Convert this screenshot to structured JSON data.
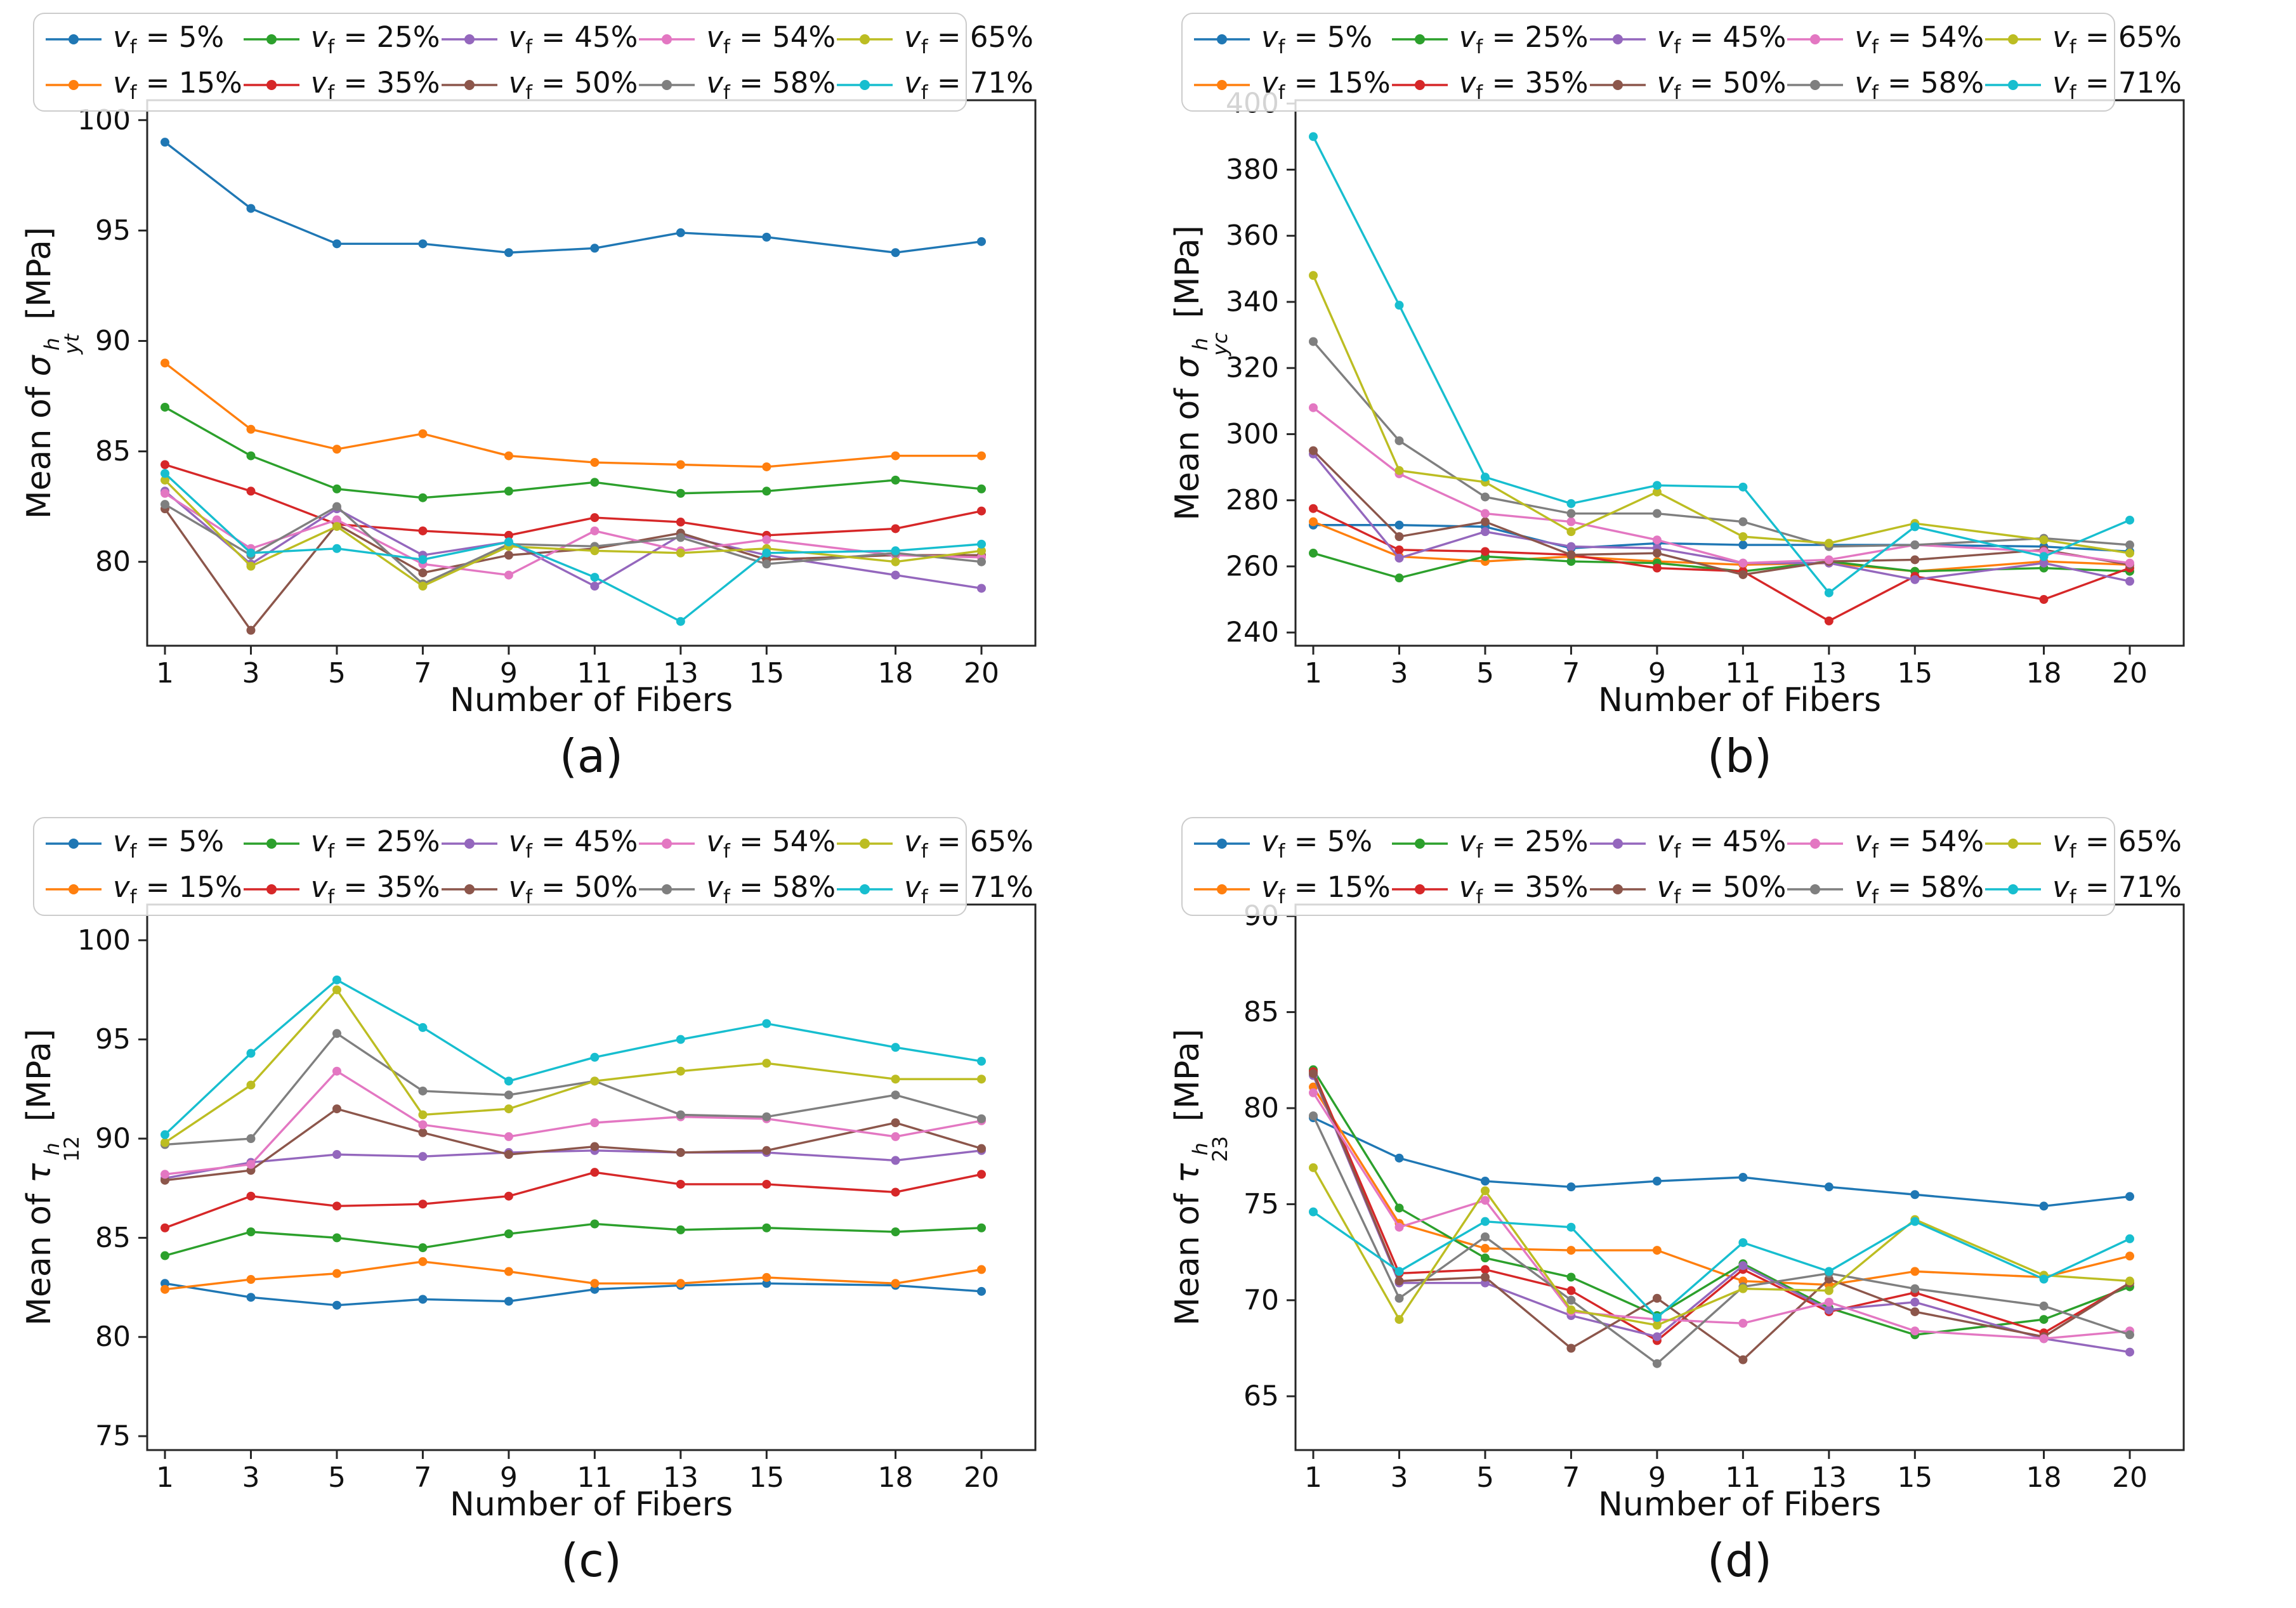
{
  "figure": {
    "xlabel": "Number of Fibers",
    "unit": "[MPa]",
    "legend": {
      "var": "v",
      "var_sub": "f",
      "eq": " = "
    },
    "spine_color": "#262626",
    "background": "#ffffff"
  },
  "chart_data": [
    {
      "type": "line",
      "panel": "a",
      "caption": "(a)",
      "title": "",
      "xlabel": "Number of Fibers",
      "ylabel": {
        "prefix": "Mean of ",
        "symbol": "σ",
        "sup": "h",
        "sub": "yt",
        "unit": "[MPa]"
      },
      "x": [
        1,
        3,
        5,
        7,
        9,
        11,
        13,
        15,
        18,
        20
      ],
      "xticks": [
        1,
        3,
        5,
        7,
        9,
        11,
        13,
        15,
        18,
        20
      ],
      "yticks": [
        80,
        85,
        90,
        95,
        100
      ],
      "ylim": [
        76.2,
        100.9
      ],
      "grid": false,
      "legend_position": "top",
      "series": [
        {
          "vf": "5%",
          "name": "vf = 5%",
          "color": "#1f77b4",
          "values": [
            99.0,
            96.0,
            94.4,
            94.4,
            94.0,
            94.2,
            94.9,
            94.7,
            94.0,
            94.5
          ]
        },
        {
          "vf": "15%",
          "name": "vf = 15%",
          "color": "#ff7f0e",
          "values": [
            89.0,
            86.0,
            85.1,
            85.8,
            84.8,
            84.5,
            84.4,
            84.3,
            84.8,
            84.8
          ]
        },
        {
          "vf": "25%",
          "name": "vf = 25%",
          "color": "#2ca02c",
          "values": [
            87.0,
            84.8,
            83.3,
            82.9,
            83.2,
            83.6,
            83.1,
            83.2,
            83.7,
            83.3
          ]
        },
        {
          "vf": "35%",
          "name": "vf = 35%",
          "color": "#d62728",
          "values": [
            84.4,
            83.2,
            81.7,
            81.4,
            81.2,
            82.0,
            81.8,
            81.2,
            81.5,
            82.3
          ]
        },
        {
          "vf": "45%",
          "name": "vf = 45%",
          "color": "#9467bd",
          "values": [
            83.2,
            79.9,
            82.4,
            80.3,
            80.9,
            78.9,
            81.2,
            80.3,
            79.4,
            78.8
          ]
        },
        {
          "vf": "50%",
          "name": "vf = 50%",
          "color": "#8c564b",
          "values": [
            82.4,
            76.9,
            81.7,
            79.5,
            80.3,
            80.6,
            81.3,
            80.1,
            80.3,
            80.3
          ]
        },
        {
          "vf": "54%",
          "name": "vf = 54%",
          "color": "#e377c2",
          "values": [
            83.1,
            80.6,
            81.9,
            79.9,
            79.4,
            81.4,
            80.5,
            81.0,
            80.3,
            80.2
          ]
        },
        {
          "vf": "58%",
          "name": "vf = 58%",
          "color": "#7f7f7f",
          "values": [
            82.6,
            80.3,
            82.5,
            79.0,
            80.8,
            80.7,
            81.1,
            79.9,
            80.4,
            80.0
          ]
        },
        {
          "vf": "65%",
          "name": "vf = 65%",
          "color": "#bcbd22",
          "values": [
            83.7,
            79.8,
            81.6,
            78.9,
            80.7,
            80.5,
            80.4,
            80.6,
            80.0,
            80.5
          ]
        },
        {
          "vf": "71%",
          "name": "vf = 71%",
          "color": "#17becf",
          "values": [
            84.0,
            80.4,
            80.6,
            80.1,
            80.9,
            79.3,
            77.3,
            80.4,
            80.5,
            80.8
          ]
        }
      ]
    },
    {
      "type": "line",
      "panel": "b",
      "caption": "(b)",
      "title": "",
      "xlabel": "Number of Fibers",
      "ylabel": {
        "prefix": "Mean of ",
        "symbol": "σ",
        "sup": "h",
        "sub": "yc",
        "unit": "[MPa]"
      },
      "x": [
        1,
        3,
        5,
        7,
        9,
        11,
        13,
        15,
        18,
        20
      ],
      "xticks": [
        1,
        3,
        5,
        7,
        9,
        11,
        13,
        15,
        18,
        20
      ],
      "yticks": [
        240,
        260,
        280,
        300,
        320,
        340,
        360,
        380,
        400
      ],
      "ylim": [
        236,
        401
      ],
      "grid": false,
      "legend_position": "top",
      "series": [
        {
          "vf": "5%",
          "name": "vf = 5%",
          "color": "#1f77b4",
          "values": [
            272.5,
            272.5,
            272.0,
            265.5,
            267.0,
            266.5,
            266.5,
            266.5,
            266.0,
            264.5
          ]
        },
        {
          "vf": "15%",
          "name": "vf = 15%",
          "color": "#ff7f0e",
          "values": [
            273.5,
            263.0,
            261.5,
            263.0,
            261.5,
            260.5,
            261.0,
            258.5,
            261.5,
            260.5
          ]
        },
        {
          "vf": "25%",
          "name": "vf = 25%",
          "color": "#2ca02c",
          "values": [
            264.0,
            256.5,
            263.0,
            261.5,
            261.0,
            258.5,
            261.5,
            258.5,
            259.5,
            258.5
          ]
        },
        {
          "vf": "35%",
          "name": "vf = 35%",
          "color": "#d62728",
          "values": [
            277.5,
            265.0,
            264.5,
            263.5,
            259.5,
            258.5,
            243.5,
            257.0,
            250.0,
            259.5
          ]
        },
        {
          "vf": "45%",
          "name": "vf = 45%",
          "color": "#9467bd",
          "values": [
            294.0,
            262.5,
            270.5,
            266.0,
            265.5,
            261.0,
            261.0,
            256.0,
            261.0,
            255.5
          ]
        },
        {
          "vf": "50%",
          "name": "vf = 50%",
          "color": "#8c564b",
          "values": [
            295.0,
            269.0,
            273.5,
            263.5,
            264.0,
            257.5,
            261.5,
            262.0,
            265.0,
            260.5
          ]
        },
        {
          "vf": "54%",
          "name": "vf = 54%",
          "color": "#e377c2",
          "values": [
            308.0,
            288.0,
            276.0,
            273.5,
            268.0,
            261.0,
            262.0,
            266.5,
            264.5,
            261.0
          ]
        },
        {
          "vf": "58%",
          "name": "vf = 58%",
          "color": "#7f7f7f",
          "values": [
            328.0,
            298.0,
            281.0,
            276.0,
            276.0,
            273.5,
            266.0,
            266.5,
            268.5,
            266.5
          ]
        },
        {
          "vf": "65%",
          "name": "vf = 65%",
          "color": "#bcbd22",
          "values": [
            348.0,
            289.0,
            285.5,
            270.5,
            282.5,
            269.0,
            267.0,
            273.0,
            268.0,
            264.0
          ]
        },
        {
          "vf": "71%",
          "name": "vf = 71%",
          "color": "#17becf",
          "values": [
            390.0,
            339.0,
            287.0,
            279.0,
            284.5,
            284.0,
            252.0,
            272.0,
            263.0,
            274.0
          ]
        }
      ]
    },
    {
      "type": "line",
      "panel": "c",
      "caption": "(c)",
      "title": "",
      "xlabel": "Number of Fibers",
      "ylabel": {
        "prefix": "Mean of ",
        "symbol": "τ",
        "sup": "h",
        "sub": "12",
        "unit": "[MPa]"
      },
      "x": [
        1,
        3,
        5,
        7,
        9,
        11,
        13,
        15,
        18,
        20
      ],
      "xticks": [
        1,
        3,
        5,
        7,
        9,
        11,
        13,
        15,
        18,
        20
      ],
      "yticks": [
        75,
        80,
        85,
        90,
        95,
        100
      ],
      "ylim": [
        74.3,
        101.8
      ],
      "grid": false,
      "legend_position": "top",
      "series": [
        {
          "vf": "5%",
          "name": "vf = 5%",
          "color": "#1f77b4",
          "values": [
            82.7,
            82.0,
            81.6,
            81.9,
            81.8,
            82.4,
            82.6,
            82.7,
            82.6,
            82.3
          ]
        },
        {
          "vf": "15%",
          "name": "vf = 15%",
          "color": "#ff7f0e",
          "values": [
            82.4,
            82.9,
            83.2,
            83.8,
            83.3,
            82.7,
            82.7,
            83.0,
            82.7,
            83.4
          ]
        },
        {
          "vf": "25%",
          "name": "vf = 25%",
          "color": "#2ca02c",
          "values": [
            84.1,
            85.3,
            85.0,
            84.5,
            85.2,
            85.7,
            85.4,
            85.5,
            85.3,
            85.5
          ]
        },
        {
          "vf": "35%",
          "name": "vf = 35%",
          "color": "#d62728",
          "values": [
            85.5,
            87.1,
            86.6,
            86.7,
            87.1,
            88.3,
            87.7,
            87.7,
            87.3,
            88.2
          ]
        },
        {
          "vf": "45%",
          "name": "vf = 45%",
          "color": "#9467bd",
          "values": [
            88.0,
            88.8,
            89.2,
            89.1,
            89.3,
            89.4,
            89.3,
            89.3,
            88.9,
            89.4
          ]
        },
        {
          "vf": "50%",
          "name": "vf = 50%",
          "color": "#8c564b",
          "values": [
            87.9,
            88.4,
            91.5,
            90.3,
            89.2,
            89.6,
            89.3,
            89.4,
            90.8,
            89.5
          ]
        },
        {
          "vf": "54%",
          "name": "vf = 54%",
          "color": "#e377c2",
          "values": [
            88.2,
            88.7,
            93.4,
            90.7,
            90.1,
            90.8,
            91.1,
            91.0,
            90.1,
            90.9
          ]
        },
        {
          "vf": "58%",
          "name": "vf = 58%",
          "color": "#7f7f7f",
          "values": [
            89.7,
            90.0,
            95.3,
            92.4,
            92.2,
            92.9,
            91.2,
            91.1,
            92.2,
            91.0
          ]
        },
        {
          "vf": "65%",
          "name": "vf = 65%",
          "color": "#bcbd22",
          "values": [
            89.8,
            92.7,
            97.5,
            91.2,
            91.5,
            92.9,
            93.4,
            93.8,
            93.0,
            93.0
          ]
        },
        {
          "vf": "71%",
          "name": "vf = 71%",
          "color": "#17becf",
          "values": [
            90.2,
            94.3,
            98.0,
            95.6,
            92.9,
            94.1,
            95.0,
            95.8,
            94.6,
            93.9
          ]
        }
      ]
    },
    {
      "type": "line",
      "panel": "d",
      "caption": "(d)",
      "title": "",
      "xlabel": "Number of Fibers",
      "ylabel": {
        "prefix": "Mean of ",
        "symbol": "τ",
        "sup": "h",
        "sub": "23",
        "unit": "[MPa]"
      },
      "x": [
        1,
        3,
        5,
        7,
        9,
        11,
        13,
        15,
        18,
        20
      ],
      "xticks": [
        1,
        3,
        5,
        7,
        9,
        11,
        13,
        15,
        18,
        20
      ],
      "yticks": [
        65,
        70,
        75,
        80,
        85,
        90
      ],
      "ylim": [
        62.2,
        90.6
      ],
      "grid": false,
      "legend_position": "top",
      "series": [
        {
          "vf": "5%",
          "name": "vf = 5%",
          "color": "#1f77b4",
          "values": [
            79.5,
            77.4,
            76.2,
            75.9,
            76.2,
            76.4,
            75.9,
            75.5,
            74.9,
            75.4
          ]
        },
        {
          "vf": "15%",
          "name": "vf = 15%",
          "color": "#ff7f0e",
          "values": [
            81.1,
            74.0,
            72.7,
            72.6,
            72.6,
            71.0,
            70.8,
            71.5,
            71.2,
            72.3
          ]
        },
        {
          "vf": "25%",
          "name": "vf = 25%",
          "color": "#2ca02c",
          "values": [
            82.0,
            74.8,
            72.2,
            71.2,
            69.2,
            71.9,
            69.6,
            68.2,
            69.0,
            70.7
          ]
        },
        {
          "vf": "35%",
          "name": "vf = 35%",
          "color": "#d62728",
          "values": [
            81.9,
            71.4,
            71.6,
            70.5,
            67.9,
            71.6,
            69.4,
            70.4,
            68.3,
            70.9
          ]
        },
        {
          "vf": "45%",
          "name": "vf = 45%",
          "color": "#9467bd",
          "values": [
            81.7,
            70.9,
            70.9,
            69.2,
            68.1,
            71.8,
            69.5,
            69.9,
            68.0,
            67.3
          ]
        },
        {
          "vf": "50%",
          "name": "vf = 50%",
          "color": "#8c564b",
          "values": [
            81.8,
            71.0,
            71.2,
            67.5,
            70.1,
            66.9,
            71.1,
            69.4,
            68.1,
            70.9
          ]
        },
        {
          "vf": "54%",
          "name": "vf = 54%",
          "color": "#e377c2",
          "values": [
            80.8,
            73.8,
            75.2,
            69.4,
            69.0,
            68.8,
            69.9,
            68.4,
            68.0,
            68.4
          ]
        },
        {
          "vf": "58%",
          "name": "vf = 58%",
          "color": "#7f7f7f",
          "values": [
            79.6,
            70.1,
            73.3,
            70.0,
            66.7,
            70.7,
            71.4,
            70.6,
            69.7,
            68.2
          ]
        },
        {
          "vf": "65%",
          "name": "vf = 65%",
          "color": "#bcbd22",
          "values": [
            76.9,
            69.0,
            75.7,
            69.5,
            68.7,
            70.6,
            70.5,
            74.2,
            71.3,
            71.0
          ]
        },
        {
          "vf": "71%",
          "name": "vf = 71%",
          "color": "#17becf",
          "values": [
            74.6,
            71.5,
            74.1,
            73.8,
            69.1,
            73.0,
            71.5,
            74.1,
            71.1,
            73.2
          ]
        }
      ]
    }
  ]
}
